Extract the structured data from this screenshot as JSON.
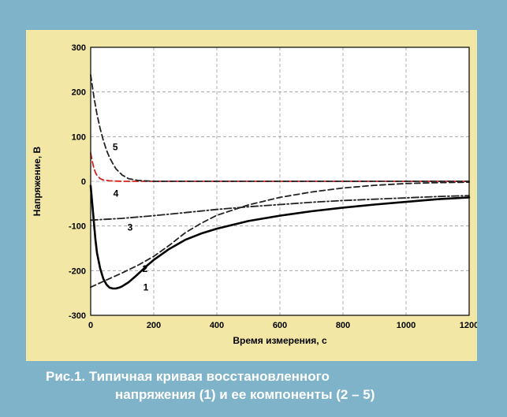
{
  "page": {
    "colors": {
      "background": "#7fb3c9",
      "panel": "#f3e7a6",
      "plot_area": "#ffffff",
      "caption_text": "#ffffff"
    }
  },
  "caption": {
    "line1": "Рис.1. Типичная кривая восстановленного",
    "line2": "напряжения (1) и ее компоненты (2 – 5)"
  },
  "chart_data": {
    "type": "line",
    "title": "",
    "xlabel": "Время измерения, с",
    "ylabel": "Напряжение, В",
    "xlim": [
      0,
      1200
    ],
    "ylim": [
      -300,
      300
    ],
    "xticks": [
      0,
      200,
      400,
      600,
      800,
      1000,
      1200
    ],
    "yticks": [
      -300,
      -200,
      -100,
      0,
      100,
      200,
      300
    ],
    "grid": true,
    "grid_style": "dashed",
    "legend": "none",
    "series": [
      {
        "label": "1",
        "color": "#000000",
        "style": "solid",
        "label_pos": [
          175,
          -237
        ],
        "points": [
          [
            0,
            -10
          ],
          [
            5,
            -50
          ],
          [
            10,
            -90
          ],
          [
            15,
            -130
          ],
          [
            20,
            -160
          ],
          [
            30,
            -195
          ],
          [
            40,
            -218
          ],
          [
            50,
            -231
          ],
          [
            60,
            -238
          ],
          [
            70,
            -240
          ],
          [
            80,
            -240
          ],
          [
            90,
            -238
          ],
          [
            100,
            -235
          ],
          [
            120,
            -226
          ],
          [
            140,
            -214
          ],
          [
            160,
            -201
          ],
          [
            180,
            -188
          ],
          [
            200,
            -176
          ],
          [
            250,
            -151
          ],
          [
            300,
            -131
          ],
          [
            350,
            -117
          ],
          [
            400,
            -106
          ],
          [
            500,
            -89
          ],
          [
            600,
            -77
          ],
          [
            700,
            -67
          ],
          [
            800,
            -59
          ],
          [
            900,
            -52
          ],
          [
            1000,
            -46
          ],
          [
            1100,
            -40
          ],
          [
            1200,
            -36
          ]
        ]
      },
      {
        "label": "2",
        "color": "#222222",
        "style": "dashed",
        "label_pos": [
          172,
          -196
        ],
        "points": [
          [
            0,
            -237
          ],
          [
            50,
            -221
          ],
          [
            100,
            -205
          ],
          [
            150,
            -188
          ],
          [
            200,
            -168
          ],
          [
            250,
            -143
          ],
          [
            300,
            -115
          ],
          [
            350,
            -94
          ],
          [
            400,
            -76
          ],
          [
            500,
            -53
          ],
          [
            600,
            -36
          ],
          [
            700,
            -24
          ],
          [
            800,
            -15
          ],
          [
            900,
            -9
          ],
          [
            1000,
            -5
          ],
          [
            1100,
            -3
          ],
          [
            1200,
            -2
          ]
        ]
      },
      {
        "label": "3",
        "color": "#222222",
        "style": "dashdot",
        "label_pos": [
          125,
          -103
        ],
        "points": [
          [
            0,
            -87
          ],
          [
            100,
            -83
          ],
          [
            200,
            -77
          ],
          [
            300,
            -70
          ],
          [
            400,
            -63
          ],
          [
            500,
            -57
          ],
          [
            600,
            -52
          ],
          [
            700,
            -47
          ],
          [
            800,
            -43
          ],
          [
            900,
            -40
          ],
          [
            1000,
            -37
          ],
          [
            1100,
            -34
          ],
          [
            1200,
            -32
          ]
        ]
      },
      {
        "label": "4",
        "color": "#d62020",
        "style": "dashed",
        "label_pos": [
          80,
          -27
        ],
        "points": [
          [
            0,
            63
          ],
          [
            5,
            45
          ],
          [
            10,
            30
          ],
          [
            15,
            20
          ],
          [
            20,
            13
          ],
          [
            30,
            6
          ],
          [
            40,
            3
          ],
          [
            60,
            1
          ],
          [
            100,
            0
          ],
          [
            200,
            0
          ],
          [
            1200,
            0
          ]
        ]
      },
      {
        "label": "5",
        "color": "#222222",
        "style": "dashed",
        "label_pos": [
          78,
          77
        ],
        "points": [
          [
            0,
            238
          ],
          [
            10,
            190
          ],
          [
            20,
            150
          ],
          [
            30,
            118
          ],
          [
            40,
            92
          ],
          [
            50,
            70
          ],
          [
            60,
            53
          ],
          [
            70,
            40
          ],
          [
            80,
            28
          ],
          [
            100,
            14
          ],
          [
            120,
            6
          ],
          [
            150,
            2
          ],
          [
            200,
            0
          ],
          [
            1200,
            0
          ]
        ]
      }
    ]
  }
}
